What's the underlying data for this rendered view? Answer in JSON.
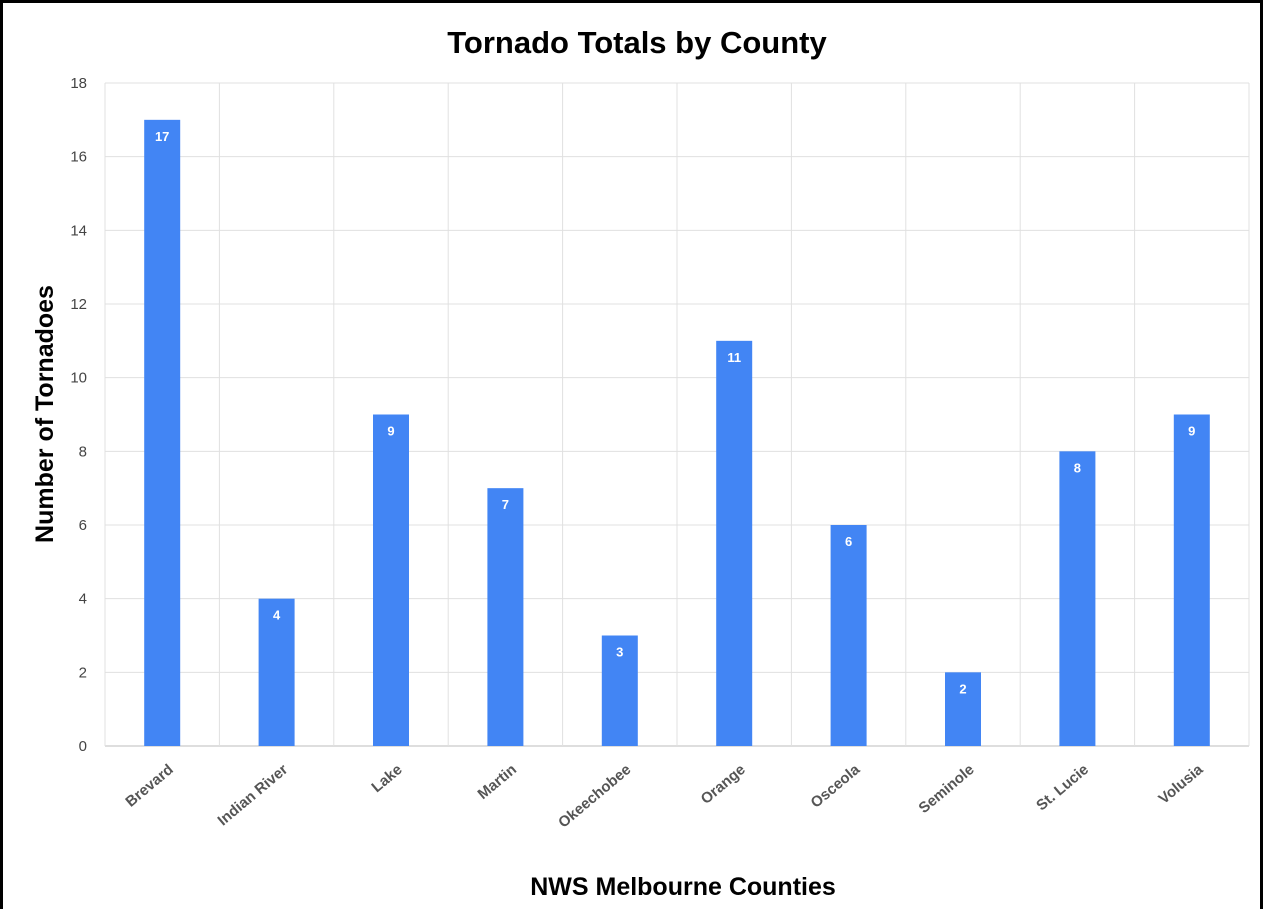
{
  "chart_data": {
    "type": "bar",
    "title": "Tornado Totals by County",
    "xlabel": "NWS Melbourne Counties",
    "ylabel": "Number of Tornadoes",
    "categories": [
      "Brevard",
      "Indian River",
      "Lake",
      "Martin",
      "Okeechobee",
      "Orange",
      "Osceola",
      "Seminole",
      "St. Lucie",
      "Volusia"
    ],
    "values": [
      17,
      4,
      9,
      7,
      3,
      11,
      6,
      2,
      8,
      9
    ],
    "ylim": [
      0,
      18
    ],
    "yticks": [
      0,
      2,
      4,
      6,
      8,
      10,
      12,
      14,
      16,
      18
    ],
    "grid": true,
    "bar_color": "#4285F4",
    "data_labels": true,
    "legend": "none"
  }
}
